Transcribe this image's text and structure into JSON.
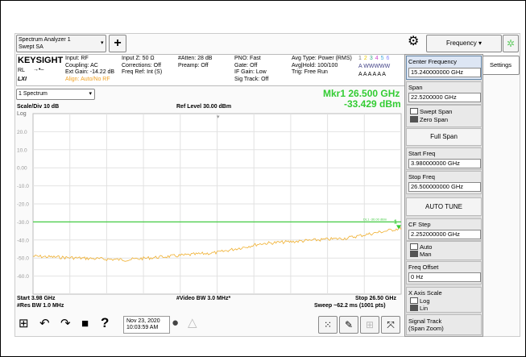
{
  "top_bar": {
    "app": "Spectrum Analyzer 1",
    "mode": "Swept SA",
    "add": "+",
    "menu": "Frequency"
  },
  "info": {
    "brand": "KEYSIGHT",
    "rl": "RL",
    "lxi": "LXI",
    "col1": [
      "Input: RF",
      "Coupling: AC",
      "Ext Gain: -14.22 dB",
      "Align: Auto/No RF"
    ],
    "col2": [
      "Input Z: 50 Ω",
      "Corrections: Off",
      "Freq Ref: Int (S)"
    ],
    "col3": [
      "#Atten: 28 dB",
      "Preamp: Off"
    ],
    "col4": [
      "PNO: Fast",
      "Gate: Off",
      "IF Gain: Low",
      "Sig Track: Off"
    ],
    "col5": [
      "Avg Type: Power (RMS)",
      "Avg|Hold: 100/100",
      "Trig: Free Run"
    ],
    "traces": [
      "1",
      "2",
      "3",
      "4",
      "5",
      "6"
    ],
    "trace_types": "A WWWWW",
    "detectors": "A A A A A A"
  },
  "plot": {
    "window": "1 Spectrum",
    "marker_freq": "Mkr1  26.500 GHz",
    "marker_level": "-33.429 dBm",
    "scale": "Scale/Div 10 dB",
    "ref_level": "Ref Level 30.00 dBm",
    "log": "Log",
    "y_labels": [
      "20.0",
      "10.0",
      "0.00",
      "-10.0",
      "-20.0",
      "-30.0",
      "-40.0",
      "-50.0",
      "-60.0"
    ],
    "display_line": "DL1 -30.00 dBm",
    "marker_tag": "1",
    "start": "Start 3.98 GHz",
    "vbw": "#Video BW 3.0 MHz*",
    "stop": "Stop 26.50 GHz",
    "rbw": "#Res BW 1.0 MHz",
    "sweep": "Sweep ~62.2 ms (1001 pts)"
  },
  "settings_tab": "Settings",
  "panel": {
    "center": {
      "label": "Center Frequency",
      "value": "15.240000000 GHz"
    },
    "span": {
      "label": "Span",
      "value": "22.5200000 GHz"
    },
    "span_mode": [
      "Swept Span",
      "Zero Span"
    ],
    "full_span": "Full Span",
    "start": {
      "label": "Start Freq",
      "value": "3.980000000 GHz"
    },
    "stop": {
      "label": "Stop Freq",
      "value": "26.500000000 GHz"
    },
    "auto_tune": "AUTO TUNE",
    "cf_step": {
      "label": "CF Step",
      "value": "2.252000000 GHz"
    },
    "cf_mode": [
      "Auto",
      "Man"
    ],
    "offset": {
      "label": "Freq Offset",
      "value": "0 Hz"
    },
    "x_scale": {
      "label": "X Axis Scale",
      "options": [
        "Log",
        "Lin"
      ]
    },
    "signal_track": [
      "Signal Track",
      "(Span Zoom)"
    ]
  },
  "taskbar": {
    "help": "?",
    "date": "Nov 23, 2020",
    "time": "10:03:59 AM"
  }
}
